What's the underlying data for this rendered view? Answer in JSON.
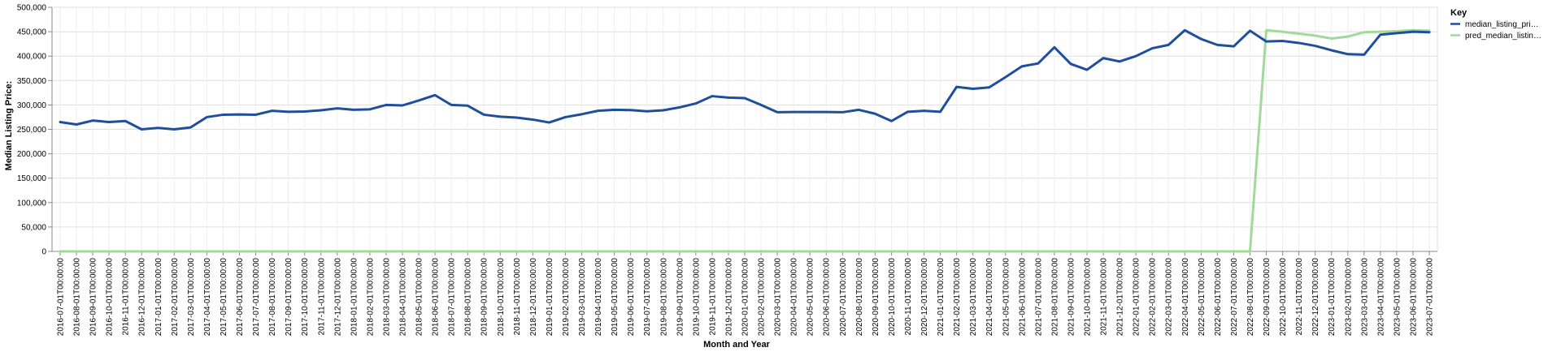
{
  "chart_data": {
    "type": "line",
    "xlabel": "Month and Year",
    "ylabel": "Median Listing Price:",
    "ylim": [
      0,
      500000
    ],
    "y_ticks": [
      "0",
      "50,000",
      "100,000",
      "150,000",
      "200,000",
      "250,000",
      "300,000",
      "350,000",
      "400,000",
      "450,000",
      "500,000"
    ],
    "grid": true,
    "legend_placement": "top-right",
    "legend_title": "Key",
    "categories": [
      "2016-07-01T00:00:00",
      "2016-08-01T00:00:00",
      "2016-09-01T00:00:00",
      "2016-10-01T00:00:00",
      "2016-11-01T00:00:00",
      "2016-12-01T00:00:00",
      "2017-01-01T00:00:00",
      "2017-02-01T00:00:00",
      "2017-03-01T00:00:00",
      "2017-04-01T00:00:00",
      "2017-05-01T00:00:00",
      "2017-06-01T00:00:00",
      "2017-07-01T00:00:00",
      "2017-08-01T00:00:00",
      "2017-09-01T00:00:00",
      "2017-10-01T00:00:00",
      "2017-11-01T00:00:00",
      "2017-12-01T00:00:00",
      "2018-01-01T00:00:00",
      "2018-02-01T00:00:00",
      "2018-03-01T00:00:00",
      "2018-04-01T00:00:00",
      "2018-05-01T00:00:00",
      "2018-06-01T00:00:00",
      "2018-07-01T00:00:00",
      "2018-08-01T00:00:00",
      "2018-09-01T00:00:00",
      "2018-10-01T00:00:00",
      "2018-11-01T00:00:00",
      "2018-12-01T00:00:00",
      "2019-01-01T00:00:00",
      "2019-02-01T00:00:00",
      "2019-03-01T00:00:00",
      "2019-04-01T00:00:00",
      "2019-05-01T00:00:00",
      "2019-06-01T00:00:00",
      "2019-07-01T00:00:00",
      "2019-08-01T00:00:00",
      "2019-09-01T00:00:00",
      "2019-10-01T00:00:00",
      "2019-11-01T00:00:00",
      "2019-12-01T00:00:00",
      "2020-01-01T00:00:00",
      "2020-02-01T00:00:00",
      "2020-03-01T00:00:00",
      "2020-04-01T00:00:00",
      "2020-05-01T00:00:00",
      "2020-06-01T00:00:00",
      "2020-07-01T00:00:00",
      "2020-08-01T00:00:00",
      "2020-09-01T00:00:00",
      "2020-10-01T00:00:00",
      "2020-11-01T00:00:00",
      "2020-12-01T00:00:00",
      "2021-01-01T00:00:00",
      "2021-02-01T00:00:00",
      "2021-03-01T00:00:00",
      "2021-04-01T00:00:00",
      "2021-05-01T00:00:00",
      "2021-06-01T00:00:00",
      "2021-07-01T00:00:00",
      "2021-08-01T00:00:00",
      "2021-09-01T00:00:00",
      "2021-10-01T00:00:00",
      "2021-11-01T00:00:00",
      "2021-12-01T00:00:00",
      "2022-01-01T00:00:00",
      "2022-02-01T00:00:00",
      "2022-03-01T00:00:00",
      "2022-04-01T00:00:00",
      "2022-05-01T00:00:00",
      "2022-06-01T00:00:00",
      "2022-07-01T00:00:00",
      "2022-08-01T00:00:00",
      "2022-09-01T00:00:00",
      "2022-10-01T00:00:00",
      "2022-11-01T00:00:00",
      "2022-12-01T00:00:00",
      "2023-01-01T00:00:00",
      "2023-02-01T00:00:00",
      "2023-03-01T00:00:00",
      "2023-04-01T00:00:00",
      "2023-05-01T00:00:00",
      "2023-06-01T00:00:00",
      "2023-07-01T00:00:00"
    ],
    "series": [
      {
        "name": "median_listing_pri…",
        "color": "#1f4e9c",
        "values": [
          265000,
          260000,
          268000,
          265000,
          267000,
          250000,
          253000,
          250000,
          254000,
          275000,
          280000,
          280500,
          280000,
          288000,
          286000,
          286500,
          289000,
          293000,
          290000,
          291000,
          300000,
          299000,
          309000,
          320000,
          300000,
          298500,
          280000,
          276000,
          274000,
          270000,
          264000,
          275000,
          281000,
          288000,
          290000,
          289500,
          287000,
          289000,
          295000,
          303000,
          318000,
          315000,
          314000,
          300000,
          285000,
          285500,
          285500,
          285500,
          285000,
          290000,
          282000,
          267000,
          286000,
          288000,
          286000,
          337000,
          333000,
          336000,
          357000,
          379000,
          385000,
          418000,
          384000,
          372000,
          396000,
          389000,
          400000,
          416000,
          423000,
          453000,
          435000,
          423000,
          420000,
          452000,
          430000,
          431000,
          427000,
          421000,
          412000,
          404000,
          403000,
          444000,
          447000,
          450000,
          449000
        ]
      },
      {
        "name": "pred_median_listin…",
        "color": "#a1d99b",
        "values": [
          0,
          0,
          0,
          0,
          0,
          0,
          0,
          0,
          0,
          0,
          0,
          0,
          0,
          0,
          0,
          0,
          0,
          0,
          0,
          0,
          0,
          0,
          0,
          0,
          0,
          0,
          0,
          0,
          0,
          0,
          0,
          0,
          0,
          0,
          0,
          0,
          0,
          0,
          0,
          0,
          0,
          0,
          0,
          0,
          0,
          0,
          0,
          0,
          0,
          0,
          0,
          0,
          0,
          0,
          0,
          0,
          0,
          0,
          0,
          0,
          0,
          0,
          0,
          0,
          0,
          0,
          0,
          0,
          0,
          0,
          0,
          0,
          0,
          0,
          453000,
          450000,
          446000,
          442000,
          436000,
          440000,
          449000,
          450000,
          451000,
          453000,
          452000
        ]
      }
    ]
  }
}
